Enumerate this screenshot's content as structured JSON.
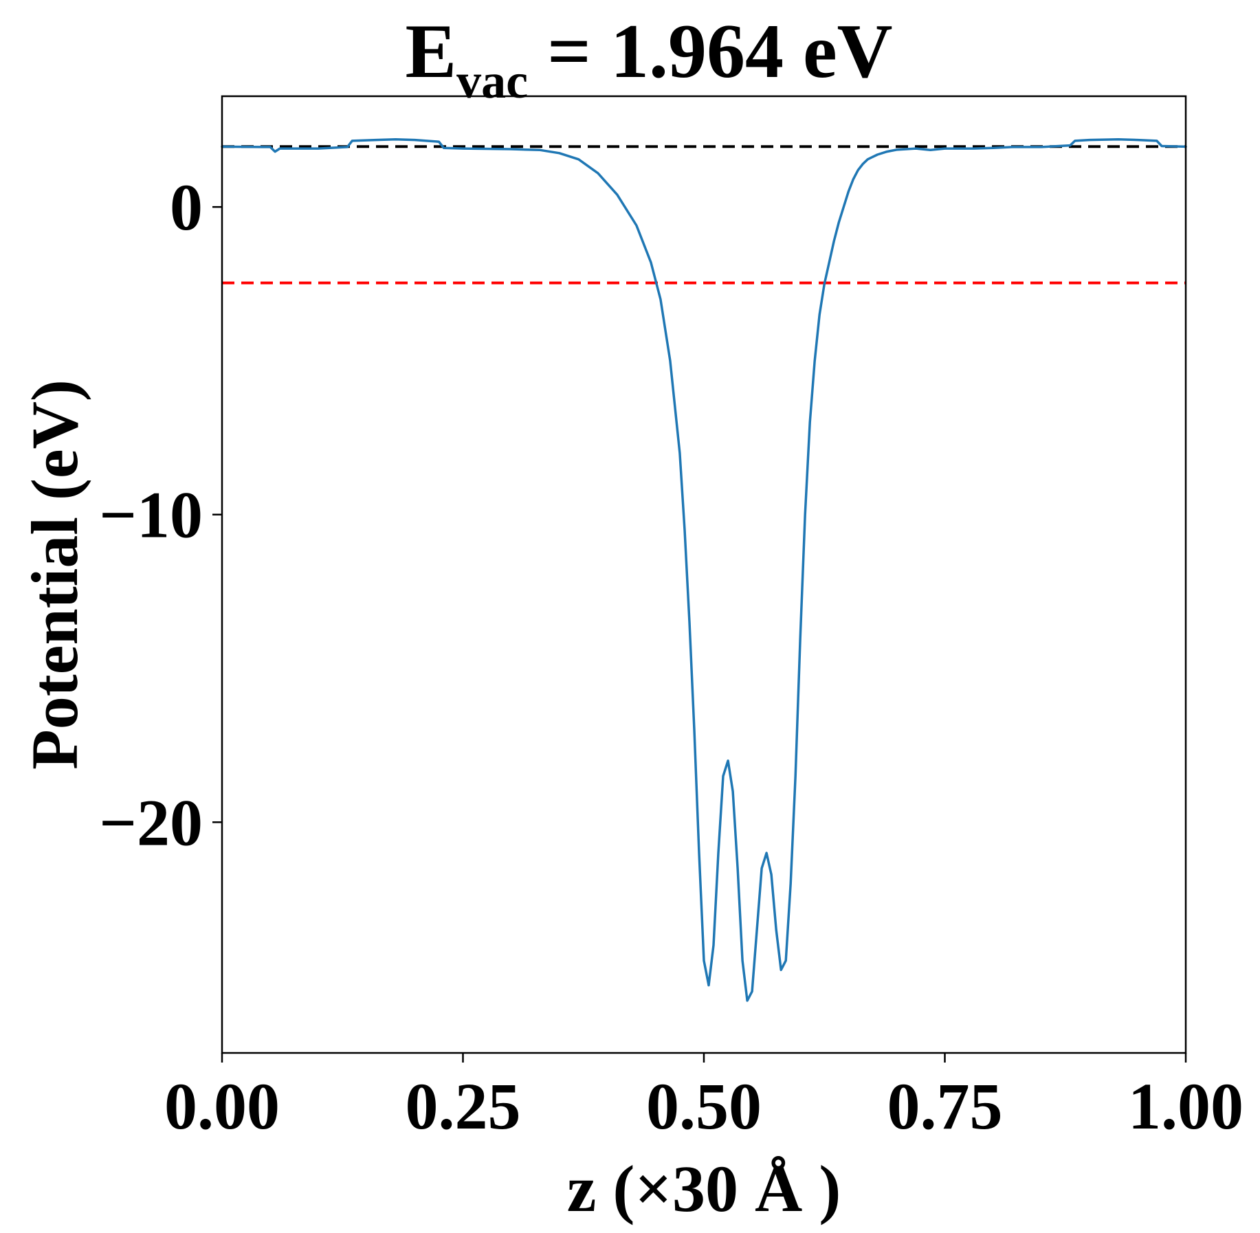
{
  "chart_data": {
    "type": "line",
    "title": {
      "symbol": "E",
      "subscript": "vac",
      "rest": " = 1.964 eV"
    },
    "xlabel": "z (×30 Å )",
    "ylabel": "Potential (eV)",
    "xlim": [
      0.0,
      1.0
    ],
    "ylim": [
      -27.5,
      3.6
    ],
    "x_ticks": [
      0.0,
      0.25,
      0.5,
      0.75,
      1.0
    ],
    "x_tick_labels": [
      "0.00",
      "0.25",
      "0.50",
      "0.75",
      "1.00"
    ],
    "y_ticks": [
      0,
      -10,
      -20
    ],
    "y_tick_labels": [
      "0",
      "−10",
      "−20"
    ],
    "grid": false,
    "legend": "none",
    "reference_lines": [
      {
        "y": 1.964,
        "color": "#000000",
        "style": "dashed"
      },
      {
        "y": -2.47,
        "color": "#ff0000",
        "style": "dashed"
      }
    ],
    "series": [
      {
        "color": "#1f77b4",
        "x": [
          0.0,
          0.05,
          0.055,
          0.06,
          0.1,
          0.13,
          0.135,
          0.16,
          0.18,
          0.2,
          0.225,
          0.23,
          0.25,
          0.3,
          0.33,
          0.35,
          0.37,
          0.39,
          0.41,
          0.43,
          0.445,
          0.455,
          0.465,
          0.475,
          0.48,
          0.485,
          0.49,
          0.495,
          0.5,
          0.505,
          0.51,
          0.515,
          0.52,
          0.525,
          0.53,
          0.535,
          0.54,
          0.545,
          0.55,
          0.555,
          0.56,
          0.565,
          0.57,
          0.575,
          0.58,
          0.585,
          0.59,
          0.595,
          0.6,
          0.605,
          0.61,
          0.615,
          0.62,
          0.625,
          0.63,
          0.635,
          0.64,
          0.645,
          0.65,
          0.655,
          0.66,
          0.665,
          0.67,
          0.68,
          0.69,
          0.7,
          0.71,
          0.72,
          0.735,
          0.75,
          0.78,
          0.8,
          0.82,
          0.85,
          0.88,
          0.885,
          0.9,
          0.93,
          0.95,
          0.97,
          0.975,
          1.0
        ],
        "y": [
          1.96,
          1.95,
          1.8,
          1.9,
          1.9,
          1.95,
          2.15,
          2.18,
          2.2,
          2.18,
          2.12,
          1.92,
          1.9,
          1.88,
          1.85,
          1.75,
          1.55,
          1.1,
          0.4,
          -0.6,
          -1.8,
          -3.0,
          -5.0,
          -8.0,
          -10.5,
          -13.5,
          -17.0,
          -21.0,
          -24.5,
          -25.3,
          -24.0,
          -21.0,
          -18.5,
          -18.0,
          -19.0,
          -21.5,
          -24.5,
          -25.8,
          -25.5,
          -23.5,
          -21.5,
          -21.0,
          -21.7,
          -23.5,
          -24.8,
          -24.5,
          -22.0,
          -18.5,
          -14.0,
          -10.0,
          -7.0,
          -5.0,
          -3.5,
          -2.5,
          -1.8,
          -1.1,
          -0.5,
          0.0,
          0.5,
          0.9,
          1.2,
          1.4,
          1.55,
          1.7,
          1.8,
          1.86,
          1.88,
          1.9,
          1.85,
          1.9,
          1.9,
          1.92,
          1.95,
          1.95,
          2.0,
          2.15,
          2.18,
          2.2,
          2.18,
          2.15,
          1.98,
          1.96
        ]
      }
    ]
  }
}
